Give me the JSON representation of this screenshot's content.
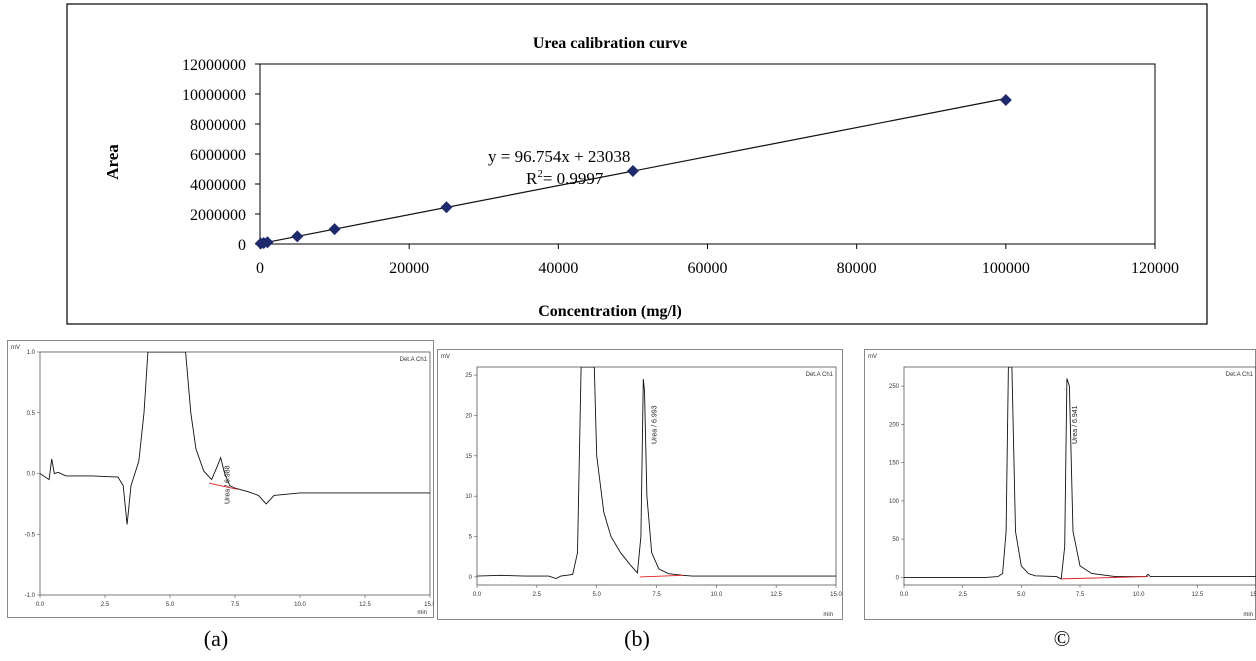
{
  "chart_data": [
    {
      "type": "scatter",
      "title": "Urea calibration curve",
      "xlabel": "Concentration (mg/l)",
      "ylabel": "Area",
      "xlim": [
        0,
        120000
      ],
      "ylim": [
        0,
        12000000
      ],
      "x_ticks": [
        "0",
        "20000",
        "40000",
        "60000",
        "80000",
        "100000",
        "120000"
      ],
      "y_ticks": [
        "0",
        "2000000",
        "4000000",
        "6000000",
        "8000000",
        "10000000",
        "12000000"
      ],
      "grid": false,
      "series": [
        {
          "points": [
            {
              "x": 100,
              "y": 30000
            },
            {
              "x": 500,
              "y": 70000
            },
            {
              "x": 1000,
              "y": 120000
            },
            {
              "x": 5000,
              "y": 510000
            },
            {
              "x": 10000,
              "y": 990000
            },
            {
              "x": 25000,
              "y": 2450000
            },
            {
              "x": 50000,
              "y": 4870000
            },
            {
              "x": 100000,
              "y": 9600000
            }
          ],
          "color": "#1f2a6e"
        }
      ],
      "trendline": {
        "slope": 96.754,
        "intercept": 23038
      },
      "annotations": {
        "equation": "y = 96.754x + 23038",
        "r2_prefix": "R",
        "r2_sup": "2",
        "r2_value": "= 0.9997"
      }
    },
    {
      "type": "line",
      "caption": "(a)",
      "unit_label": "mV",
      "xunit": "min",
      "detector": "Det.A Ch1",
      "xlim": [
        0,
        15
      ],
      "ylim": [
        -1.0,
        1.0
      ],
      "x_ticks": [
        "0.0",
        "2.5",
        "5.0",
        "7.5",
        "10.0",
        "12.5",
        "15.0"
      ],
      "y_ticks": [
        "-1.0",
        "-0.5",
        "0.0",
        "0.5",
        "1.0"
      ],
      "peak_label": "Urea / 6.988",
      "peak_time": 6.988,
      "trace": [
        [
          0,
          0.0
        ],
        [
          0.35,
          -0.05
        ],
        [
          0.45,
          0.12
        ],
        [
          0.55,
          0.0
        ],
        [
          0.7,
          0.01
        ],
        [
          1.0,
          -0.02
        ],
        [
          2.0,
          -0.02
        ],
        [
          3.0,
          -0.03
        ],
        [
          3.2,
          -0.1
        ],
        [
          3.35,
          -0.42
        ],
        [
          3.5,
          -0.1
        ],
        [
          3.8,
          0.1
        ],
        [
          4.0,
          0.5
        ],
        [
          4.15,
          1.0
        ],
        [
          5.6,
          1.0
        ],
        [
          5.8,
          0.5
        ],
        [
          6.0,
          0.2
        ],
        [
          6.3,
          0.02
        ],
        [
          6.6,
          -0.05
        ],
        [
          6.8,
          0.05
        ],
        [
          6.95,
          0.13
        ],
        [
          7.1,
          0.0
        ],
        [
          7.3,
          -0.1
        ],
        [
          7.5,
          -0.12
        ],
        [
          8.0,
          -0.15
        ],
        [
          8.4,
          -0.18
        ],
        [
          8.7,
          -0.25
        ],
        [
          9.0,
          -0.18
        ],
        [
          10,
          -0.16
        ],
        [
          12,
          -0.16
        ],
        [
          15,
          -0.16
        ]
      ],
      "baseline": [
        [
          6.5,
          -0.08
        ],
        [
          7.6,
          -0.13
        ]
      ]
    },
    {
      "type": "line",
      "caption": "(b)",
      "unit_label": "mV",
      "xunit": "min",
      "detector": "Det.A Ch1",
      "xlim": [
        0,
        15
      ],
      "ylim": [
        -1,
        26
      ],
      "x_ticks": [
        "0.0",
        "2.5",
        "5.0",
        "7.5",
        "10.0",
        "12.5",
        "15.0"
      ],
      "y_ticks": [
        "0",
        "5",
        "10",
        "15",
        "20",
        "25"
      ],
      "peak_label": "Urea / 6.993",
      "peak_time": 6.993,
      "trace": [
        [
          0,
          0.1
        ],
        [
          1,
          0.2
        ],
        [
          2,
          0.1
        ],
        [
          3.0,
          0.1
        ],
        [
          3.3,
          -0.2
        ],
        [
          3.5,
          0.1
        ],
        [
          4.0,
          0.3
        ],
        [
          4.2,
          3.0
        ],
        [
          4.35,
          26
        ],
        [
          4.9,
          26
        ],
        [
          5.0,
          15
        ],
        [
          5.3,
          8
        ],
        [
          5.6,
          5
        ],
        [
          6.0,
          3
        ],
        [
          6.4,
          1.5
        ],
        [
          6.7,
          0.5
        ],
        [
          6.85,
          5
        ],
        [
          6.95,
          24.5
        ],
        [
          7.0,
          23.0
        ],
        [
          7.1,
          10
        ],
        [
          7.3,
          3
        ],
        [
          7.6,
          1
        ],
        [
          8.0,
          0.4
        ],
        [
          8.6,
          0.2
        ],
        [
          9,
          0.1
        ],
        [
          12,
          0.1
        ],
        [
          15,
          0.1
        ]
      ],
      "baseline": [
        [
          6.8,
          0.0
        ],
        [
          8.6,
          0.2
        ]
      ]
    },
    {
      "type": "line",
      "caption": "©",
      "unit_label": "mV",
      "xunit": "min",
      "detector": "Det.A Ch1",
      "xlim": [
        0,
        15
      ],
      "ylim": [
        -10,
        275
      ],
      "x_ticks": [
        "0.0",
        "2.5",
        "5.0",
        "7.5",
        "10.0",
        "12.5",
        "15.0"
      ],
      "y_ticks": [
        "0",
        "50",
        "100",
        "150",
        "200",
        "250"
      ],
      "peak_label": "Urea / 6.941",
      "peak_time": 6.941,
      "trace": [
        [
          0,
          0
        ],
        [
          3.5,
          0
        ],
        [
          4.0,
          1
        ],
        [
          4.2,
          5
        ],
        [
          4.35,
          60
        ],
        [
          4.45,
          275
        ],
        [
          4.6,
          275
        ],
        [
          4.75,
          60
        ],
        [
          5.0,
          15
        ],
        [
          5.3,
          5
        ],
        [
          5.6,
          2
        ],
        [
          6.5,
          1
        ],
        [
          6.7,
          -2
        ],
        [
          6.85,
          40
        ],
        [
          6.94,
          260
        ],
        [
          7.05,
          250
        ],
        [
          7.2,
          60
        ],
        [
          7.5,
          15
        ],
        [
          8.0,
          5
        ],
        [
          9,
          1
        ],
        [
          10.3,
          1
        ],
        [
          10.4,
          4
        ],
        [
          10.5,
          1
        ],
        [
          12,
          1
        ],
        [
          15,
          1
        ]
      ],
      "baseline": [
        [
          6.7,
          -2
        ],
        [
          10.4,
          1
        ]
      ]
    }
  ]
}
